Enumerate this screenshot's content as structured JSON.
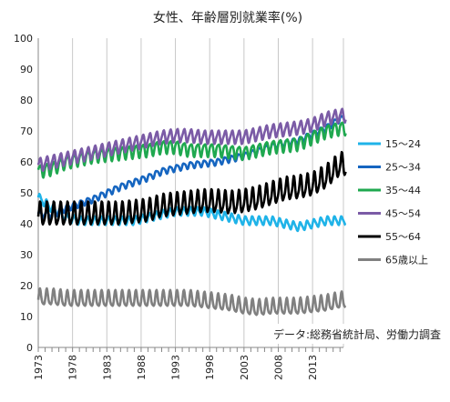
{
  "chart_data": {
    "type": "line",
    "title": "女性、年齢層別就業率(%)",
    "source": "データ:総務省統計局、労働力調査",
    "xlabel": "",
    "ylabel": "",
    "xlim": [
      1973,
      2017.5
    ],
    "ylim": [
      0,
      100
    ],
    "yticks": [
      0,
      10,
      20,
      30,
      40,
      50,
      60,
      70,
      80,
      90,
      100
    ],
    "xticks": [
      1973,
      1978,
      1983,
      1988,
      1993,
      1998,
      2003,
      2008,
      2013
    ],
    "grid": "vertical",
    "legend_position": "right",
    "series": [
      {
        "name": "15〜24",
        "color": "#1fb3e8",
        "amp": 1.3,
        "x": [
          1973,
          1975,
          1977,
          1979,
          1981,
          1983,
          1985,
          1987,
          1989,
          1991,
          1993,
          1995,
          1997,
          1999,
          2001,
          2003,
          2005,
          2007,
          2009,
          2011,
          2013,
          2015,
          2017
        ],
        "y": [
          48.5,
          45,
          42,
          41,
          41,
          41,
          41,
          41,
          42,
          43,
          44,
          44,
          44,
          43,
          42,
          41,
          41,
          41,
          40,
          39,
          40,
          41,
          41
        ]
      },
      {
        "name": "25〜34",
        "color": "#1565c0",
        "amp": 1.0,
        "x": [
          1973,
          1975,
          1977,
          1979,
          1981,
          1983,
          1985,
          1987,
          1989,
          1991,
          1993,
          1995,
          1997,
          1999,
          2001,
          2003,
          2005,
          2007,
          2009,
          2011,
          2013,
          2015,
          2017
        ],
        "y": [
          43,
          43,
          45,
          46.5,
          48,
          50,
          52,
          53.5,
          55,
          57,
          58,
          59,
          59.5,
          60,
          61,
          62,
          63.5,
          65,
          66,
          67,
          69,
          71,
          74
        ]
      },
      {
        "name": "35〜44",
        "color": "#1fa84f",
        "amp": 2.0,
        "x": [
          1973,
          1975,
          1977,
          1979,
          1981,
          1983,
          1985,
          1987,
          1989,
          1991,
          1993,
          1995,
          1997,
          1999,
          2001,
          2003,
          2005,
          2007,
          2009,
          2011,
          2013,
          2015,
          2017
        ],
        "y": [
          57,
          58,
          60,
          61,
          62,
          62.5,
          63,
          63.5,
          64,
          65,
          65,
          64,
          64,
          64,
          63.5,
          63,
          64,
          65,
          65.5,
          66,
          68,
          70,
          71
        ]
      },
      {
        "name": "45〜54",
        "color": "#7b5ba6",
        "amp": 2.0,
        "x": [
          1973,
          1975,
          1977,
          1979,
          1981,
          1983,
          1985,
          1987,
          1989,
          1991,
          1993,
          1995,
          1997,
          1999,
          2001,
          2003,
          2005,
          2007,
          2009,
          2011,
          2013,
          2015,
          2017
        ],
        "y": [
          59,
          60,
          61,
          62,
          63,
          64,
          65,
          66,
          67,
          68,
          68.5,
          68.5,
          68,
          68,
          68,
          68,
          69,
          70,
          70.5,
          71,
          72,
          74,
          75
        ]
      },
      {
        "name": "55〜64",
        "color": "#000000",
        "amp": 3.5,
        "x": [
          1973,
          1975,
          1977,
          1979,
          1981,
          1983,
          1985,
          1987,
          1989,
          1991,
          1993,
          1995,
          1997,
          1999,
          2001,
          2003,
          2005,
          2007,
          2009,
          2011,
          2013,
          2015,
          2017
        ],
        "y": [
          43,
          43,
          43,
          43,
          43,
          43,
          43,
          43.5,
          44,
          45.5,
          46,
          46.5,
          47,
          47,
          46.5,
          47,
          48,
          49.5,
          51,
          51.5,
          52.5,
          55,
          59
        ]
      },
      {
        "name": "65歳以上",
        "color": "#808080",
        "amp": 2.5,
        "x": [
          1973,
          1975,
          1977,
          1979,
          1981,
          1983,
          1985,
          1987,
          1989,
          1991,
          1993,
          1995,
          1997,
          1999,
          2001,
          2003,
          2005,
          2007,
          2009,
          2011,
          2013,
          2015,
          2017
        ],
        "y": [
          16,
          16,
          15.5,
          15.5,
          15.5,
          15.5,
          15.5,
          15.5,
          15.5,
          15.5,
          15.5,
          15.5,
          15,
          14.5,
          14,
          13,
          12.5,
          13,
          13,
          13,
          13.5,
          14,
          15
        ]
      }
    ]
  }
}
